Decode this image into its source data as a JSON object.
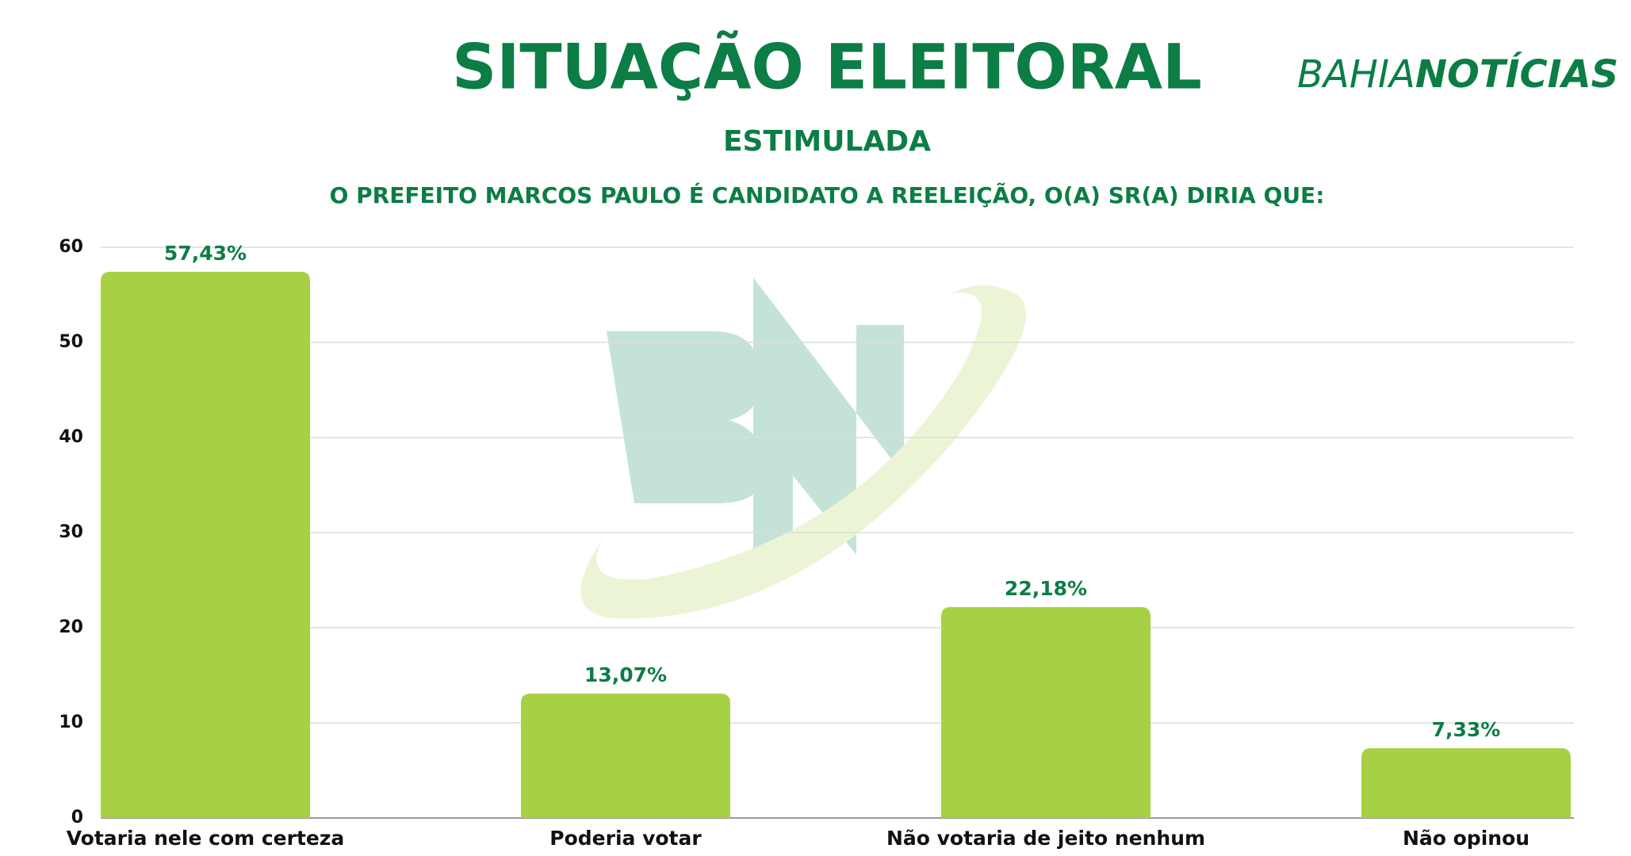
{
  "chart_data": {
    "type": "bar",
    "title": "SITUAÇÃO ELEITORAL",
    "subtitle": "ESTIMULADA",
    "question": "O PREFEITO MARCOS PAULO É CANDIDATO A REELEIÇÃO, O(A) SR(A) DIRIA QUE:",
    "logo": {
      "light": "BAHIA",
      "bold": "NOTÍCIAS"
    },
    "categories": [
      "Votaria nele com certeza",
      "Poderia votar",
      "Não votaria de jeito nenhum",
      "Não opinou"
    ],
    "values": [
      57.43,
      13.07,
      22.18,
      7.33
    ],
    "value_labels": [
      "57,43%",
      "13,07%",
      "22,18%",
      "7,33%"
    ],
    "color": "#a8d045",
    "ylim": [
      0,
      60
    ],
    "yticks": [
      0,
      10,
      20,
      30,
      40,
      50,
      60
    ],
    "grid": true
  }
}
